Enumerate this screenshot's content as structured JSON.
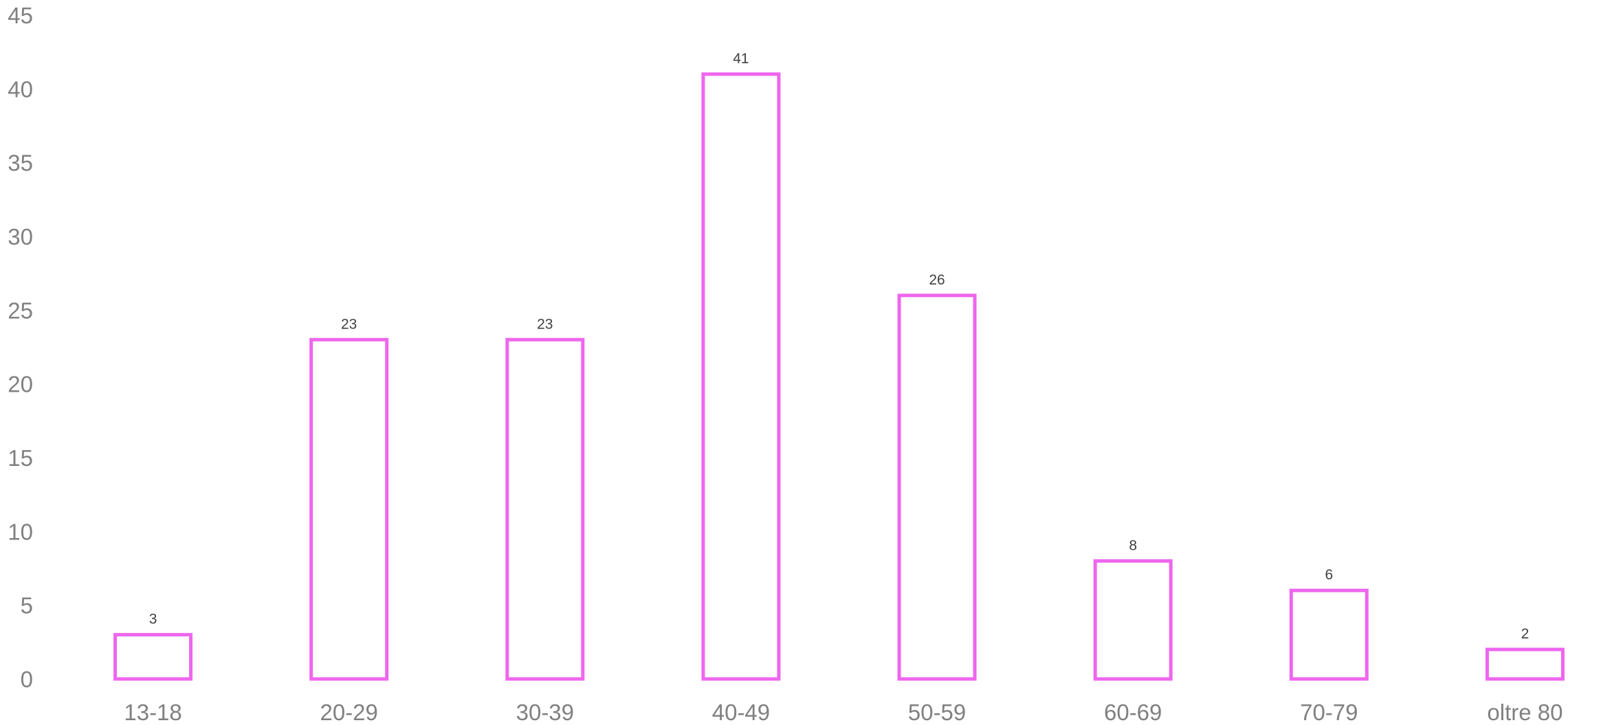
{
  "chart_data": {
    "type": "bar",
    "title": "",
    "xlabel": "",
    "ylabel": "",
    "categories": [
      "13-18",
      "20-29",
      "30-39",
      "40-49",
      "50-59",
      "60-69",
      "70-79",
      "oltre 80"
    ],
    "values": [
      3,
      23,
      23,
      41,
      26,
      8,
      6,
      2
    ],
    "data_labels": [
      "3",
      "23",
      "23",
      "41",
      "26",
      "8",
      "6",
      "2"
    ],
    "ylim": [
      0,
      45
    ],
    "y_ticks": [
      "0",
      "5",
      "10",
      "15",
      "20",
      "25",
      "30",
      "35",
      "40",
      "45"
    ],
    "grid": false,
    "legend": "none",
    "colors": {
      "bar_outline": "#EE66EE",
      "bar_fill": "#FFFFFF",
      "tick_text": "#808080",
      "label_text": "#404040"
    }
  }
}
